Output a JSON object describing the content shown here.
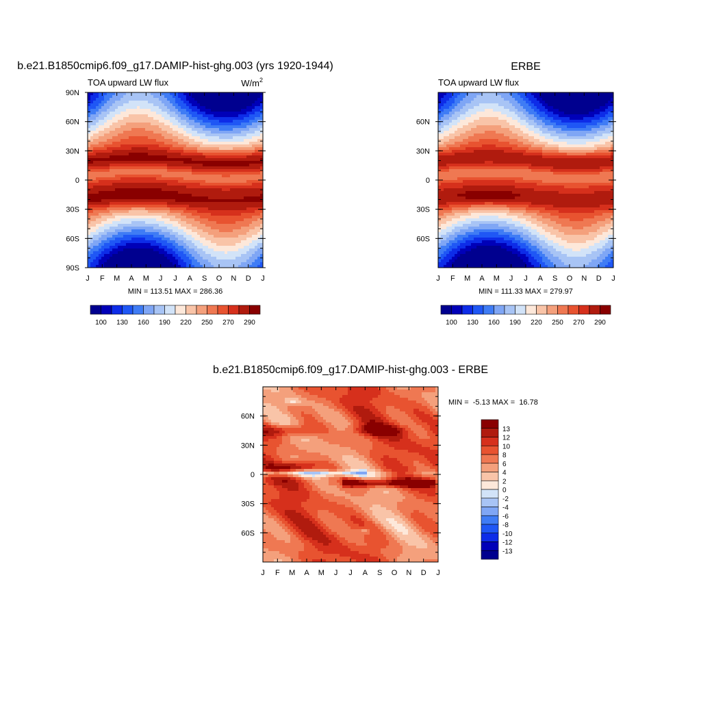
{
  "palettes": {
    "flux": [
      "#00008f",
      "#0000b8",
      "#0d2ce8",
      "#1f57f5",
      "#3f7cf5",
      "#7fa6f5",
      "#a8c4f5",
      "#d2e3f8",
      "#fde8da",
      "#f9c4a8",
      "#f4a07c",
      "#ef7852",
      "#e85330",
      "#d6301c",
      "#b01b0e",
      "#890000"
    ],
    "diff": [
      "#00008f",
      "#0000b8",
      "#0d2ce8",
      "#1f57f5",
      "#3f7cf5",
      "#7fa6f5",
      "#a8c4f5",
      "#d2e3f8",
      "#fde8da",
      "#f9c4a8",
      "#f4a07c",
      "#ef7852",
      "#e85330",
      "#d6301c",
      "#b01b0e",
      "#890000"
    ]
  },
  "months": [
    "J",
    "F",
    "M",
    "A",
    "M",
    "J",
    "J",
    "A",
    "S",
    "O",
    "N",
    "D",
    "J"
  ],
  "chart_data": [
    {
      "type": "heatmap",
      "id": "model",
      "title": "b.e21.B1850cmip6.f09_g17.DAMIP-hist-ghg.003 (yrs 1920-1944)",
      "left_label": "TOA upward LW flux",
      "right_label_base": "W/m",
      "right_label_sup": "2",
      "x_labels": [
        "J",
        "F",
        "M",
        "A",
        "M",
        "J",
        "J",
        "A",
        "S",
        "O",
        "N",
        "D",
        "J"
      ],
      "y_ticks": [
        90,
        60,
        30,
        0,
        -30,
        -60,
        -90
      ],
      "y_labels": [
        "90N",
        "60N",
        "30N",
        "0",
        "30S",
        "60S",
        "90S"
      ],
      "ylim": [
        -90,
        90
      ],
      "stats": "MIN = 113.51 MAX = 286.36",
      "min": 113.51,
      "max": 286.36,
      "colorbar": {
        "orientation": "horizontal",
        "labels": [
          "100",
          "130",
          "160",
          "190",
          "220",
          "250",
          "270",
          "290"
        ]
      }
    },
    {
      "type": "heatmap",
      "id": "obs",
      "title": "ERBE",
      "left_label": "TOA upward LW flux",
      "x_labels": [
        "J",
        "F",
        "M",
        "A",
        "M",
        "J",
        "J",
        "A",
        "S",
        "O",
        "N",
        "D",
        "J"
      ],
      "y_ticks": [
        60,
        30,
        0,
        -30,
        -60
      ],
      "y_labels": [
        "60N",
        "30N",
        "0",
        "30S",
        "60S"
      ],
      "ylim": [
        -90,
        90
      ],
      "stats": "MIN = 111.33 MAX = 279.97",
      "min": 111.33,
      "max": 279.97,
      "colorbar": {
        "orientation": "horizontal",
        "labels": [
          "100",
          "130",
          "160",
          "190",
          "220",
          "250",
          "270",
          "290"
        ]
      }
    },
    {
      "type": "heatmap",
      "id": "diff",
      "title": "b.e21.B1850cmip6.f09_g17.DAMIP-hist-ghg.003 - ERBE",
      "x_labels": [
        "J",
        "F",
        "M",
        "A",
        "M",
        "J",
        "J",
        "A",
        "S",
        "O",
        "N",
        "D",
        "J"
      ],
      "y_ticks": [
        60,
        30,
        0,
        -30,
        -60
      ],
      "y_labels": [
        "60N",
        "30N",
        "0",
        "30S",
        "60S"
      ],
      "ylim": [
        -90,
        90
      ],
      "stats": "MIN =  -5.13 MAX =  16.78",
      "min": -5.13,
      "max": 16.78,
      "colorbar": {
        "orientation": "vertical",
        "labels": [
          "13",
          "12",
          "10",
          "8",
          "6",
          "4",
          "2",
          "0",
          "-2",
          "-4",
          "-6",
          "-8",
          "-10",
          "-12",
          "-13"
        ]
      }
    }
  ]
}
